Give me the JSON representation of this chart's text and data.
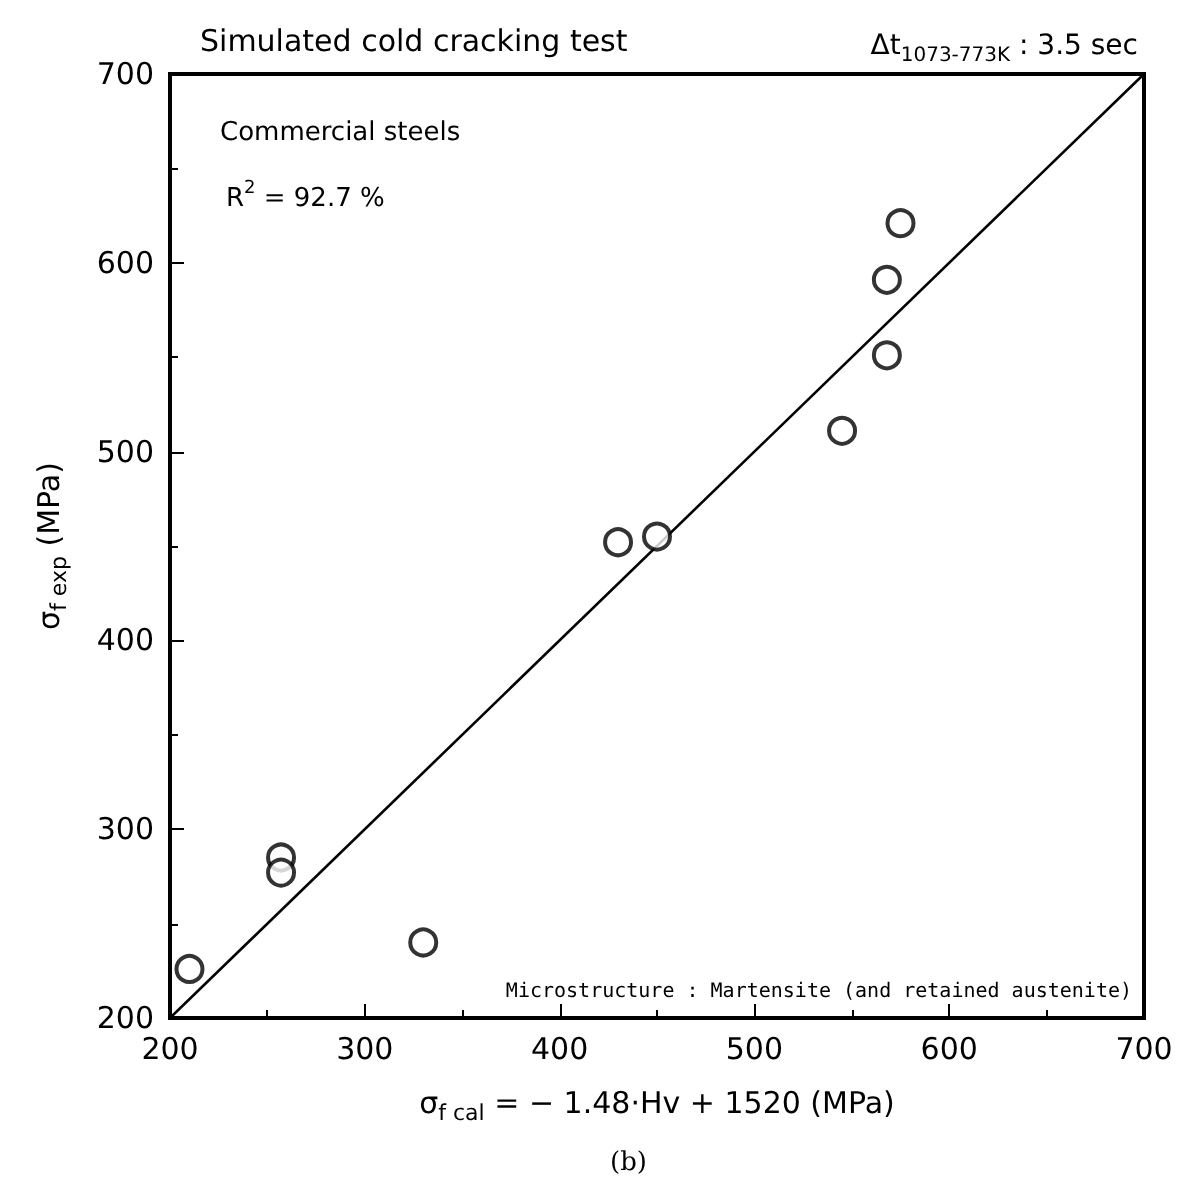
{
  "chart_data": {
    "type": "scatter",
    "title": "Simulated cold cracking test",
    "subtitle": "Δt$_{1073-773K}$ : 3.5 sec",
    "xlabel": "σ$_{f cal}$ = − 1.48·Hv + 1520 (MPa)",
    "ylabel": "σ$_{f exp}$ (MPa)",
    "annotations": [
      "Commercial steels",
      "R$^{2}$ = 92.7 %",
      "Microstructure : Martensite (and retained austenite)",
      "(b)"
    ],
    "xlim": [
      200,
      700
    ],
    "ylim": [
      200,
      700
    ],
    "xticks": [
      200,
      300,
      400,
      500,
      600,
      700
    ],
    "yticks": [
      200,
      300,
      400,
      500,
      600,
      700
    ],
    "grid": false,
    "marker": "circle",
    "series": [
      {
        "color": "#000000",
        "x": [
          210,
          257,
          257,
          330,
          430,
          450,
          545,
          568,
          568,
          575
        ],
        "values": [
          226,
          285,
          277,
          240,
          452,
          455,
          511,
          551,
          591,
          621
        ]
      },
      {
        "type": "line",
        "color": "#000000",
        "marker": "none",
        "line_style": "solid",
        "x": [
          200,
          700
        ],
        "values": [
          200,
          700
        ]
      }
    ]
  }
}
